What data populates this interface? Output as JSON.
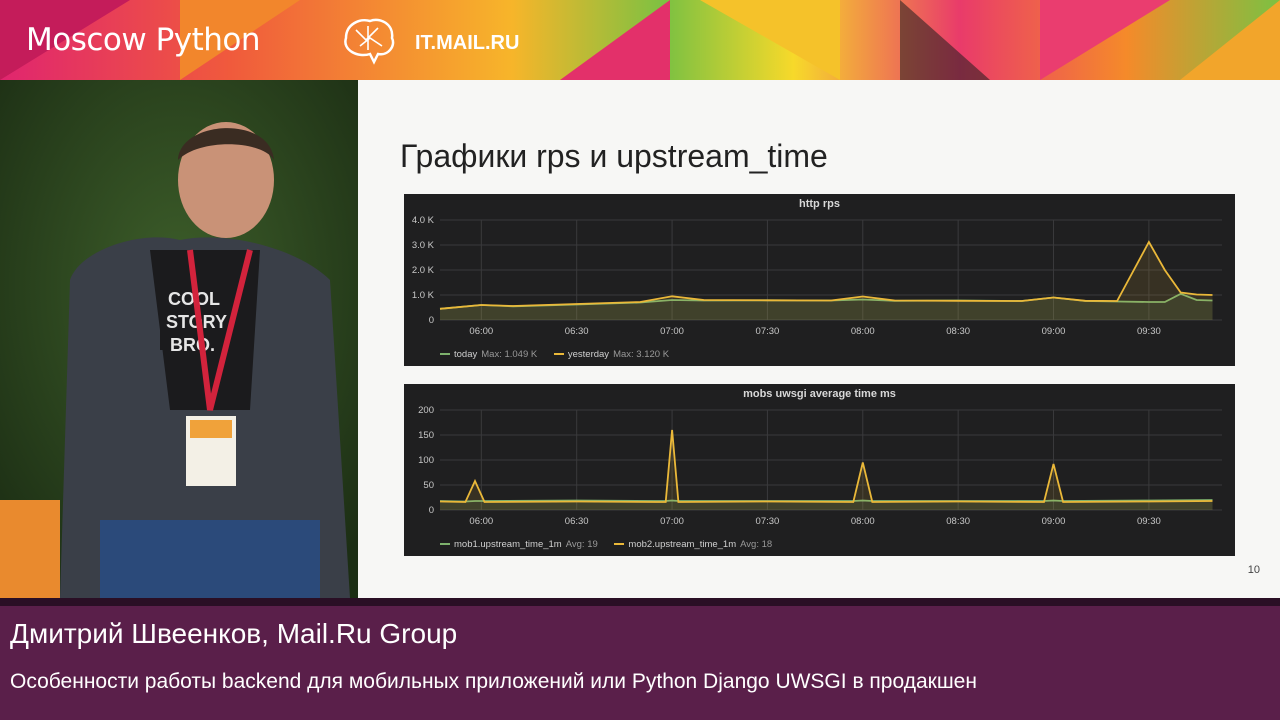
{
  "banner": {
    "event_logo": "Moscow Python",
    "sponsor": "IT.MAIL.RU",
    "icon": "brain-icon"
  },
  "slide": {
    "title": "Графики rps и upstream_time",
    "number": "10"
  },
  "chart_data": [
    {
      "type": "line",
      "title": "http rps",
      "x": [
        "05:47",
        "06:00",
        "06:10",
        "06:30",
        "06:50",
        "07:00",
        "07:10",
        "07:30",
        "07:50",
        "08:00",
        "08:10",
        "08:30",
        "08:50",
        "09:00",
        "09:10",
        "09:20",
        "09:30",
        "09:35",
        "09:40",
        "09:45",
        "09:50"
      ],
      "x_ticks": [
        "06:00",
        "06:30",
        "07:00",
        "07:30",
        "08:00",
        "08:30",
        "09:00",
        "09:30"
      ],
      "y_ticks": [
        "0",
        "1.0 K",
        "2.0 K",
        "3.0 K",
        "4.0 K"
      ],
      "ylim": [
        0,
        4000
      ],
      "series": [
        {
          "name": "today",
          "color": "#7eb26d",
          "stat_label": "Max: 1.049 K",
          "values": [
            450,
            600,
            550,
            620,
            700,
            800,
            780,
            790,
            780,
            820,
            770,
            780,
            760,
            900,
            760,
            740,
            720,
            720,
            1049,
            800,
            780
          ]
        },
        {
          "name": "yesterday",
          "color": "#eab839",
          "stat_label": "Max: 3.120 K",
          "values": [
            450,
            600,
            560,
            640,
            720,
            950,
            800,
            790,
            780,
            940,
            780,
            770,
            760,
            900,
            770,
            760,
            3120,
            2000,
            1100,
            1020,
            1000
          ]
        }
      ]
    },
    {
      "type": "line",
      "title": "mobs uwsgi average time ms",
      "x": [
        "05:47",
        "05:55",
        "05:58",
        "06:01",
        "06:30",
        "06:55",
        "06:58",
        "07:00",
        "07:02",
        "07:30",
        "07:57",
        "08:00",
        "08:03",
        "08:30",
        "08:57",
        "09:00",
        "09:03",
        "09:30",
        "09:50"
      ],
      "x_ticks": [
        "06:00",
        "06:30",
        "07:00",
        "07:30",
        "08:00",
        "08:30",
        "09:00",
        "09:30"
      ],
      "y_ticks": [
        "0",
        "50",
        "100",
        "150",
        "200"
      ],
      "ylim": [
        0,
        200
      ],
      "series": [
        {
          "name": "mob1.upstream_time_1m",
          "color": "#7eb26d",
          "stat_label": "Avg: 19",
          "values": [
            18,
            17,
            18,
            18,
            19,
            18,
            18,
            19,
            18,
            18,
            18,
            19,
            18,
            18,
            18,
            19,
            18,
            19,
            20
          ]
        },
        {
          "name": "mob2.upstream_time_1m",
          "color": "#eab839",
          "stat_label": "Avg: 18",
          "values": [
            17,
            16,
            58,
            16,
            17,
            16,
            16,
            160,
            16,
            17,
            16,
            95,
            16,
            17,
            16,
            92,
            16,
            17,
            18
          ]
        }
      ]
    }
  ],
  "lower_third": {
    "speaker": "Дмитрий Швеенков, Mail.Ru Group",
    "talk": "Особенности работы backend для мобильных приложений или Python Django UWSGI в продакшен"
  }
}
